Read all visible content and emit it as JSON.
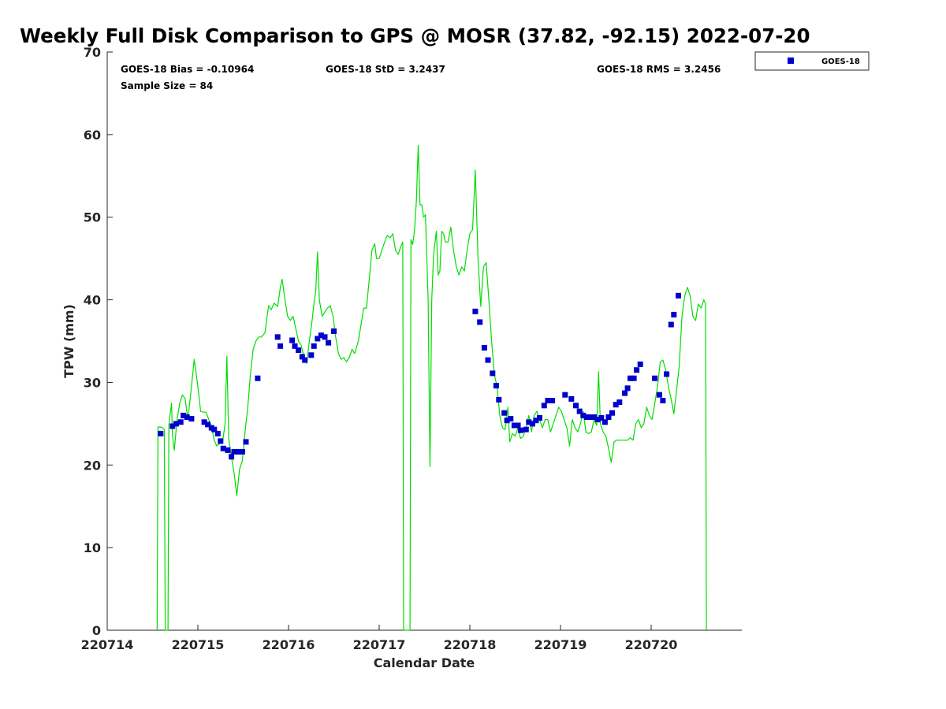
{
  "chart_data": {
    "type": "scatter",
    "title": "Weekly Full Disk Comparison to GPS @ MOSR (37.82, -92.15) 2022-07-20",
    "xlabel": "Calendar Date",
    "ylabel": "TPW (mm)",
    "xlim": [
      0,
      7
    ],
    "ylim": [
      0,
      70
    ],
    "yticks": [
      0,
      10,
      20,
      30,
      40,
      50,
      60,
      70
    ],
    "xticks": [
      {
        "value": 0,
        "label": "220714"
      },
      {
        "value": 1,
        "label": "220715"
      },
      {
        "value": 2,
        "label": "220716"
      },
      {
        "value": 3,
        "label": "220717"
      },
      {
        "value": 4,
        "label": "220718"
      },
      {
        "value": 5,
        "label": "220719"
      },
      {
        "value": 6,
        "label": "220720"
      }
    ],
    "stats": {
      "bias": "GOES-18 Bias = -0.10964",
      "std": "GOES-18 StD = 3.2437",
      "rms": "GOES-18 RMS = 3.2456",
      "sample": "Sample Size = 84"
    },
    "legend": {
      "position": "top-right",
      "label": "GOES-18"
    },
    "colors": {
      "goes": "#0000cc",
      "gps": "#00dd00",
      "axis": "#262626"
    },
    "series": [
      {
        "name": "GOES-18",
        "kind": "markers",
        "points": [
          [
            0.59,
            23.8
          ],
          [
            0.72,
            24.7
          ],
          [
            0.76,
            25.0
          ],
          [
            0.81,
            25.2
          ],
          [
            0.84,
            26.0
          ],
          [
            0.88,
            25.8
          ],
          [
            0.93,
            25.6
          ],
          [
            1.07,
            25.2
          ],
          [
            1.11,
            24.9
          ],
          [
            1.15,
            24.5
          ],
          [
            1.18,
            24.3
          ],
          [
            1.22,
            23.8
          ],
          [
            1.25,
            22.9
          ],
          [
            1.28,
            22.0
          ],
          [
            1.33,
            21.8
          ],
          [
            1.37,
            21.0
          ],
          [
            1.4,
            21.6
          ],
          [
            1.43,
            21.6
          ],
          [
            1.46,
            21.6
          ],
          [
            1.49,
            21.6
          ],
          [
            1.53,
            22.8
          ],
          [
            1.66,
            30.5
          ],
          [
            1.88,
            35.5
          ],
          [
            1.91,
            34.4
          ],
          [
            2.04,
            35.1
          ],
          [
            2.07,
            34.4
          ],
          [
            2.11,
            33.9
          ],
          [
            2.15,
            33.1
          ],
          [
            2.18,
            32.7
          ],
          [
            2.25,
            33.3
          ],
          [
            2.28,
            34.4
          ],
          [
            2.32,
            35.3
          ],
          [
            2.36,
            35.7
          ],
          [
            2.4,
            35.5
          ],
          [
            2.44,
            34.8
          ],
          [
            2.5,
            36.2
          ],
          [
            4.06,
            38.6
          ],
          [
            4.11,
            37.3
          ],
          [
            4.16,
            34.2
          ],
          [
            4.2,
            32.7
          ],
          [
            4.25,
            31.1
          ],
          [
            4.29,
            29.6
          ],
          [
            4.32,
            27.9
          ],
          [
            4.38,
            26.3
          ],
          [
            4.41,
            25.4
          ],
          [
            4.45,
            25.6
          ],
          [
            4.49,
            24.8
          ],
          [
            4.53,
            24.8
          ],
          [
            4.56,
            24.2
          ],
          [
            4.62,
            24.3
          ],
          [
            4.65,
            25.2
          ],
          [
            4.69,
            25.0
          ],
          [
            4.73,
            25.4
          ],
          [
            4.77,
            25.7
          ],
          [
            4.82,
            27.2
          ],
          [
            4.86,
            27.8
          ],
          [
            4.91,
            27.8
          ],
          [
            5.05,
            28.5
          ],
          [
            5.12,
            28.0
          ],
          [
            5.17,
            27.2
          ],
          [
            5.21,
            26.5
          ],
          [
            5.25,
            26.0
          ],
          [
            5.29,
            25.8
          ],
          [
            5.33,
            25.8
          ],
          [
            5.37,
            25.8
          ],
          [
            5.41,
            25.5
          ],
          [
            5.45,
            25.7
          ],
          [
            5.49,
            25.2
          ],
          [
            5.53,
            25.8
          ],
          [
            5.57,
            26.3
          ],
          [
            5.61,
            27.3
          ],
          [
            5.65,
            27.6
          ],
          [
            5.71,
            28.7
          ],
          [
            5.74,
            29.3
          ],
          [
            5.77,
            30.5
          ],
          [
            5.81,
            30.5
          ],
          [
            5.84,
            31.5
          ],
          [
            5.88,
            32.2
          ],
          [
            6.04,
            30.5
          ],
          [
            6.09,
            28.5
          ],
          [
            6.13,
            27.8
          ],
          [
            6.17,
            31.0
          ],
          [
            6.22,
            37.0
          ],
          [
            6.25,
            38.2
          ],
          [
            6.3,
            40.5
          ]
        ]
      },
      {
        "name": "GPS",
        "kind": "line",
        "points": [
          [
            0.55,
            0
          ],
          [
            0.56,
            24.6
          ],
          [
            0.6,
            24.6
          ],
          [
            0.63,
            24.3
          ],
          [
            0.64,
            0
          ],
          [
            0.67,
            0
          ],
          [
            0.68,
            24.8
          ],
          [
            0.71,
            27.5
          ],
          [
            0.72,
            23.5
          ],
          [
            0.74,
            21.8
          ],
          [
            0.77,
            25.5
          ],
          [
            0.8,
            27.5
          ],
          [
            0.83,
            28.5
          ],
          [
            0.86,
            28.0
          ],
          [
            0.89,
            25.5
          ],
          [
            0.92,
            28.5
          ],
          [
            0.96,
            32.8
          ],
          [
            1.0,
            29.5
          ],
          [
            1.03,
            26.5
          ],
          [
            1.06,
            26.4
          ],
          [
            1.09,
            26.4
          ],
          [
            1.12,
            25.5
          ],
          [
            1.15,
            24.7
          ],
          [
            1.18,
            23.0
          ],
          [
            1.21,
            22.3
          ],
          [
            1.24,
            22.6
          ],
          [
            1.27,
            22.6
          ],
          [
            1.3,
            25.0
          ],
          [
            1.32,
            33.2
          ],
          [
            1.34,
            23.2
          ],
          [
            1.37,
            21.0
          ],
          [
            1.4,
            19.0
          ],
          [
            1.43,
            16.3
          ],
          [
            1.46,
            19.5
          ],
          [
            1.49,
            20.5
          ],
          [
            1.52,
            24.0
          ],
          [
            1.55,
            27.0
          ],
          [
            1.58,
            31.0
          ],
          [
            1.61,
            34.0
          ],
          [
            1.64,
            35.0
          ],
          [
            1.67,
            35.5
          ],
          [
            1.7,
            35.5
          ],
          [
            1.74,
            36.0
          ],
          [
            1.78,
            39.3
          ],
          [
            1.81,
            38.8
          ],
          [
            1.84,
            39.6
          ],
          [
            1.88,
            39.2
          ],
          [
            1.91,
            41.5
          ],
          [
            1.93,
            42.5
          ],
          [
            1.96,
            40.0
          ],
          [
            1.99,
            38.0
          ],
          [
            2.02,
            37.5
          ],
          [
            2.05,
            38.0
          ],
          [
            2.08,
            36.5
          ],
          [
            2.11,
            35.0
          ],
          [
            2.14,
            34.5
          ],
          [
            2.17,
            33.0
          ],
          [
            2.2,
            32.3
          ],
          [
            2.23,
            35.0
          ],
          [
            2.26,
            37.5
          ],
          [
            2.28,
            39.5
          ],
          [
            2.3,
            41.0
          ],
          [
            2.32,
            45.8
          ],
          [
            2.34,
            40.0
          ],
          [
            2.37,
            38.0
          ],
          [
            2.4,
            38.5
          ],
          [
            2.43,
            39.0
          ],
          [
            2.46,
            39.3
          ],
          [
            2.49,
            38.0
          ],
          [
            2.52,
            35.5
          ],
          [
            2.55,
            33.5
          ],
          [
            2.58,
            32.8
          ],
          [
            2.61,
            33.0
          ],
          [
            2.64,
            32.5
          ],
          [
            2.67,
            33.0
          ],
          [
            2.7,
            34.0
          ],
          [
            2.73,
            33.5
          ],
          [
            2.77,
            35.0
          ],
          [
            2.8,
            37.0
          ],
          [
            2.83,
            39.0
          ],
          [
            2.86,
            39.0
          ],
          [
            2.89,
            42.5
          ],
          [
            2.92,
            46.0
          ],
          [
            2.95,
            46.8
          ],
          [
            2.97,
            45.0
          ],
          [
            3.0,
            45.0
          ],
          [
            3.03,
            46.0
          ],
          [
            3.06,
            47.0
          ],
          [
            3.09,
            47.8
          ],
          [
            3.12,
            47.5
          ],
          [
            3.15,
            48.0
          ],
          [
            3.18,
            46.0
          ],
          [
            3.21,
            45.5
          ],
          [
            3.24,
            46.5
          ],
          [
            3.26,
            47.0
          ],
          [
            3.27,
            0
          ],
          [
            3.34,
            0
          ],
          [
            3.35,
            47.3
          ],
          [
            3.37,
            46.7
          ],
          [
            3.39,
            48.5
          ],
          [
            3.41,
            52.0
          ],
          [
            3.43,
            58.7
          ],
          [
            3.45,
            51.5
          ],
          [
            3.47,
            51.5
          ],
          [
            3.49,
            50.0
          ],
          [
            3.51,
            50.3
          ],
          [
            3.52,
            47.0
          ],
          [
            3.54,
            40.0
          ],
          [
            3.56,
            19.8
          ],
          [
            3.58,
            40.0
          ],
          [
            3.6,
            45.5
          ],
          [
            3.63,
            48.3
          ],
          [
            3.65,
            43.0
          ],
          [
            3.67,
            43.5
          ],
          [
            3.69,
            48.3
          ],
          [
            3.71,
            48.0
          ],
          [
            3.73,
            47.0
          ],
          [
            3.76,
            47.0
          ],
          [
            3.79,
            48.8
          ],
          [
            3.82,
            46.0
          ],
          [
            3.85,
            44.0
          ],
          [
            3.88,
            43.0
          ],
          [
            3.91,
            44.0
          ],
          [
            3.94,
            43.5
          ],
          [
            3.97,
            46.0
          ],
          [
            4.0,
            48.0
          ],
          [
            4.03,
            48.5
          ],
          [
            4.06,
            55.7
          ],
          [
            4.09,
            45.0
          ],
          [
            4.12,
            39.2
          ],
          [
            4.15,
            44.0
          ],
          [
            4.18,
            44.5
          ],
          [
            4.21,
            40.0
          ],
          [
            4.24,
            35.0
          ],
          [
            4.27,
            31.0
          ],
          [
            4.3,
            29.5
          ],
          [
            4.33,
            26.0
          ],
          [
            4.36,
            24.5
          ],
          [
            4.39,
            24.3
          ],
          [
            4.42,
            27.0
          ],
          [
            4.44,
            22.8
          ],
          [
            4.47,
            23.8
          ],
          [
            4.5,
            23.5
          ],
          [
            4.53,
            24.5
          ],
          [
            4.56,
            23.2
          ],
          [
            4.59,
            23.5
          ],
          [
            4.62,
            24.5
          ],
          [
            4.65,
            26.0
          ],
          [
            4.68,
            24.0
          ],
          [
            4.71,
            26.0
          ],
          [
            4.74,
            26.5
          ],
          [
            4.77,
            25.5
          ],
          [
            4.8,
            24.5
          ],
          [
            4.83,
            25.5
          ],
          [
            4.86,
            25.5
          ],
          [
            4.89,
            24.0
          ],
          [
            4.92,
            25.0
          ],
          [
            4.95,
            26.0
          ],
          [
            4.98,
            27.0
          ],
          [
            5.01,
            26.5
          ],
          [
            5.04,
            25.5
          ],
          [
            5.07,
            24.5
          ],
          [
            5.1,
            22.3
          ],
          [
            5.13,
            25.5
          ],
          [
            5.16,
            24.5
          ],
          [
            5.19,
            24.0
          ],
          [
            5.22,
            25.0
          ],
          [
            5.25,
            26.5
          ],
          [
            5.28,
            24.0
          ],
          [
            5.31,
            23.8
          ],
          [
            5.34,
            24.0
          ],
          [
            5.37,
            25.5
          ],
          [
            5.4,
            24.8
          ],
          [
            5.42,
            31.3
          ],
          [
            5.44,
            25.0
          ],
          [
            5.47,
            24.0
          ],
          [
            5.5,
            23.5
          ],
          [
            5.53,
            22.0
          ],
          [
            5.56,
            20.3
          ],
          [
            5.59,
            22.8
          ],
          [
            5.62,
            23.0
          ],
          [
            5.65,
            23.0
          ],
          [
            5.68,
            23.0
          ],
          [
            5.71,
            23.0
          ],
          [
            5.74,
            23.0
          ],
          [
            5.77,
            23.3
          ],
          [
            5.8,
            23.0
          ],
          [
            5.83,
            25.0
          ],
          [
            5.86,
            25.5
          ],
          [
            5.89,
            24.5
          ],
          [
            5.92,
            25.0
          ],
          [
            5.95,
            27.0
          ],
          [
            5.98,
            26.0
          ],
          [
            6.01,
            25.5
          ],
          [
            6.04,
            27.5
          ],
          [
            6.07,
            29.5
          ],
          [
            6.1,
            32.5
          ],
          [
            6.13,
            32.7
          ],
          [
            6.16,
            31.5
          ],
          [
            6.19,
            29.5
          ],
          [
            6.22,
            28.0
          ],
          [
            6.25,
            26.2
          ],
          [
            6.28,
            29.0
          ],
          [
            6.31,
            32.0
          ],
          [
            6.34,
            38.0
          ],
          [
            6.37,
            40.5
          ],
          [
            6.4,
            41.5
          ],
          [
            6.43,
            40.5
          ],
          [
            6.46,
            38.0
          ],
          [
            6.49,
            37.5
          ],
          [
            6.52,
            39.5
          ],
          [
            6.55,
            39.0
          ],
          [
            6.58,
            40.0
          ],
          [
            6.6,
            39.5
          ],
          [
            6.61,
            0
          ]
        ]
      }
    ]
  }
}
